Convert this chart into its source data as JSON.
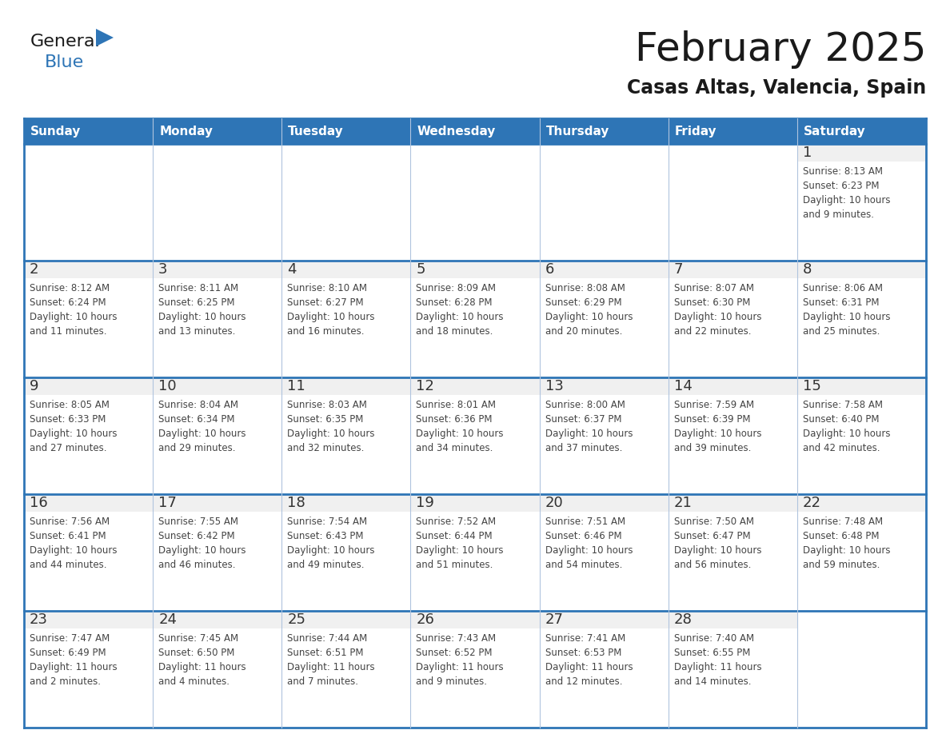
{
  "title": "February 2025",
  "subtitle": "Casas Altas, Valencia, Spain",
  "header_bg": "#2e75b6",
  "header_text_color": "#ffffff",
  "cell_bg": "#ffffff",
  "cell_day_bg": "#f0f0f0",
  "border_color": "#2e75b6",
  "border_color_inner": "#b0c4de",
  "day_number_color": "#333333",
  "info_text_color": "#444444",
  "days_of_week": [
    "Sunday",
    "Monday",
    "Tuesday",
    "Wednesday",
    "Thursday",
    "Friday",
    "Saturday"
  ],
  "logo_general_color": "#1a1a1a",
  "logo_blue_color": "#2e75b6",
  "title_color": "#1a1a1a",
  "subtitle_color": "#1a1a1a",
  "weeks": [
    [
      {
        "day": null,
        "info": null
      },
      {
        "day": null,
        "info": null
      },
      {
        "day": null,
        "info": null
      },
      {
        "day": null,
        "info": null
      },
      {
        "day": null,
        "info": null
      },
      {
        "day": null,
        "info": null
      },
      {
        "day": 1,
        "info": "Sunrise: 8:13 AM\nSunset: 6:23 PM\nDaylight: 10 hours\nand 9 minutes."
      }
    ],
    [
      {
        "day": 2,
        "info": "Sunrise: 8:12 AM\nSunset: 6:24 PM\nDaylight: 10 hours\nand 11 minutes."
      },
      {
        "day": 3,
        "info": "Sunrise: 8:11 AM\nSunset: 6:25 PM\nDaylight: 10 hours\nand 13 minutes."
      },
      {
        "day": 4,
        "info": "Sunrise: 8:10 AM\nSunset: 6:27 PM\nDaylight: 10 hours\nand 16 minutes."
      },
      {
        "day": 5,
        "info": "Sunrise: 8:09 AM\nSunset: 6:28 PM\nDaylight: 10 hours\nand 18 minutes."
      },
      {
        "day": 6,
        "info": "Sunrise: 8:08 AM\nSunset: 6:29 PM\nDaylight: 10 hours\nand 20 minutes."
      },
      {
        "day": 7,
        "info": "Sunrise: 8:07 AM\nSunset: 6:30 PM\nDaylight: 10 hours\nand 22 minutes."
      },
      {
        "day": 8,
        "info": "Sunrise: 8:06 AM\nSunset: 6:31 PM\nDaylight: 10 hours\nand 25 minutes."
      }
    ],
    [
      {
        "day": 9,
        "info": "Sunrise: 8:05 AM\nSunset: 6:33 PM\nDaylight: 10 hours\nand 27 minutes."
      },
      {
        "day": 10,
        "info": "Sunrise: 8:04 AM\nSunset: 6:34 PM\nDaylight: 10 hours\nand 29 minutes."
      },
      {
        "day": 11,
        "info": "Sunrise: 8:03 AM\nSunset: 6:35 PM\nDaylight: 10 hours\nand 32 minutes."
      },
      {
        "day": 12,
        "info": "Sunrise: 8:01 AM\nSunset: 6:36 PM\nDaylight: 10 hours\nand 34 minutes."
      },
      {
        "day": 13,
        "info": "Sunrise: 8:00 AM\nSunset: 6:37 PM\nDaylight: 10 hours\nand 37 minutes."
      },
      {
        "day": 14,
        "info": "Sunrise: 7:59 AM\nSunset: 6:39 PM\nDaylight: 10 hours\nand 39 minutes."
      },
      {
        "day": 15,
        "info": "Sunrise: 7:58 AM\nSunset: 6:40 PM\nDaylight: 10 hours\nand 42 minutes."
      }
    ],
    [
      {
        "day": 16,
        "info": "Sunrise: 7:56 AM\nSunset: 6:41 PM\nDaylight: 10 hours\nand 44 minutes."
      },
      {
        "day": 17,
        "info": "Sunrise: 7:55 AM\nSunset: 6:42 PM\nDaylight: 10 hours\nand 46 minutes."
      },
      {
        "day": 18,
        "info": "Sunrise: 7:54 AM\nSunset: 6:43 PM\nDaylight: 10 hours\nand 49 minutes."
      },
      {
        "day": 19,
        "info": "Sunrise: 7:52 AM\nSunset: 6:44 PM\nDaylight: 10 hours\nand 51 minutes."
      },
      {
        "day": 20,
        "info": "Sunrise: 7:51 AM\nSunset: 6:46 PM\nDaylight: 10 hours\nand 54 minutes."
      },
      {
        "day": 21,
        "info": "Sunrise: 7:50 AM\nSunset: 6:47 PM\nDaylight: 10 hours\nand 56 minutes."
      },
      {
        "day": 22,
        "info": "Sunrise: 7:48 AM\nSunset: 6:48 PM\nDaylight: 10 hours\nand 59 minutes."
      }
    ],
    [
      {
        "day": 23,
        "info": "Sunrise: 7:47 AM\nSunset: 6:49 PM\nDaylight: 11 hours\nand 2 minutes."
      },
      {
        "day": 24,
        "info": "Sunrise: 7:45 AM\nSunset: 6:50 PM\nDaylight: 11 hours\nand 4 minutes."
      },
      {
        "day": 25,
        "info": "Sunrise: 7:44 AM\nSunset: 6:51 PM\nDaylight: 11 hours\nand 7 minutes."
      },
      {
        "day": 26,
        "info": "Sunrise: 7:43 AM\nSunset: 6:52 PM\nDaylight: 11 hours\nand 9 minutes."
      },
      {
        "day": 27,
        "info": "Sunrise: 7:41 AM\nSunset: 6:53 PM\nDaylight: 11 hours\nand 12 minutes."
      },
      {
        "day": 28,
        "info": "Sunrise: 7:40 AM\nSunset: 6:55 PM\nDaylight: 11 hours\nand 14 minutes."
      },
      {
        "day": null,
        "info": null
      }
    ]
  ]
}
